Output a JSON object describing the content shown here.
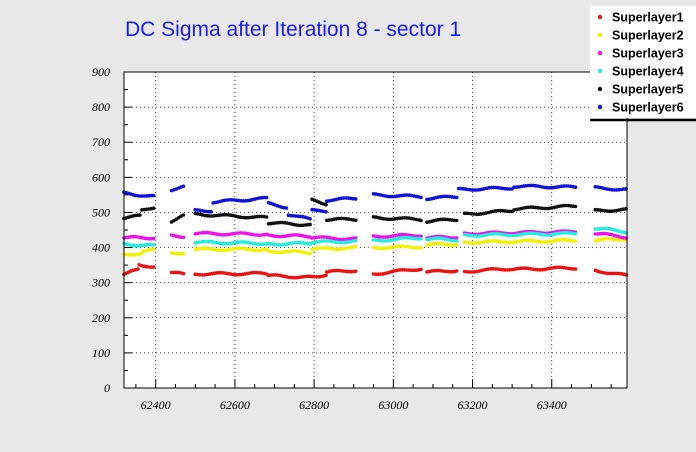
{
  "chart_data": {
    "type": "scatter",
    "title": "DC Sigma after Iteration 8 - sector 1",
    "xlabel": "",
    "ylabel": "",
    "xlim": [
      62320,
      63590
    ],
    "ylim": [
      0,
      900
    ],
    "x_ticks": [
      62400,
      62600,
      62800,
      63000,
      63200,
      63400
    ],
    "y_ticks": [
      0,
      100,
      200,
      300,
      400,
      500,
      600,
      700,
      800,
      900
    ],
    "grid": true,
    "legend_position": "top-right",
    "colors": {
      "background": "#e8e8e8",
      "plot_area": "#ffffff",
      "title": "#1a1aff"
    },
    "series": [
      {
        "name": "Superlayer1",
        "color": "#ee1111",
        "segments": [
          {
            "x": [
              62320,
              62355
            ],
            "y": [
              322,
              338
            ]
          },
          {
            "x": [
              62358,
              62395
            ],
            "y": [
              352,
              345
            ]
          },
          {
            "x": [
              62440,
              62470
            ],
            "y": [
              328,
              324
            ]
          },
          {
            "x": [
              62500,
              62680
            ],
            "y": [
              325,
              326
            ]
          },
          {
            "x": [
              62685,
              62790
            ],
            "y": [
              320,
              315
            ]
          },
          {
            "x": [
              62795,
              62830
            ],
            "y": [
              318,
              322
            ]
          },
          {
            "x": [
              62832,
              62905
            ],
            "y": [
              330,
              335
            ]
          },
          {
            "x": [
              62950,
              63070
            ],
            "y": [
              325,
              340
            ]
          },
          {
            "x": [
              63085,
              63160
            ],
            "y": [
              330,
              335
            ]
          },
          {
            "x": [
              63180,
              63300
            ],
            "y": [
              332,
              340
            ]
          },
          {
            "x": [
              63305,
              63460
            ],
            "y": [
              338,
              342
            ]
          },
          {
            "x": [
              63510,
              63588
            ],
            "y": [
              335,
              320
            ]
          }
        ]
      },
      {
        "name": "Superlayer2",
        "color": "#f2f200",
        "segments": [
          {
            "x": [
              62320,
              62365
            ],
            "y": [
              382,
              382
            ]
          },
          {
            "x": [
              62370,
              62395
            ],
            "y": [
              390,
              392
            ]
          },
          {
            "x": [
              62440,
              62470
            ],
            "y": [
              385,
              385
            ]
          },
          {
            "x": [
              62500,
              62680
            ],
            "y": [
              395,
              395
            ]
          },
          {
            "x": [
              62685,
              62790
            ],
            "y": [
              390,
              386
            ]
          },
          {
            "x": [
              62795,
              62905
            ],
            "y": [
              395,
              400
            ]
          },
          {
            "x": [
              62950,
              63070
            ],
            "y": [
              400,
              402
            ]
          },
          {
            "x": [
              63085,
              63160
            ],
            "y": [
              408,
              410
            ]
          },
          {
            "x": [
              63180,
              63460
            ],
            "y": [
              415,
              420
            ]
          },
          {
            "x": [
              63510,
              63588
            ],
            "y": [
              420,
              425
            ]
          }
        ]
      },
      {
        "name": "Superlayer3",
        "color": "#ee11ee",
        "segments": [
          {
            "x": [
              62320,
              62395
            ],
            "y": [
              428,
              428
            ]
          },
          {
            "x": [
              62440,
              62470
            ],
            "y": [
              435,
              432
            ]
          },
          {
            "x": [
              62500,
              62680
            ],
            "y": [
              440,
              438
            ]
          },
          {
            "x": [
              62685,
              62790
            ],
            "y": [
              435,
              432
            ]
          },
          {
            "x": [
              62795,
              62905
            ],
            "y": [
              428,
              425
            ]
          },
          {
            "x": [
              62950,
              63070
            ],
            "y": [
              432,
              435
            ]
          },
          {
            "x": [
              63085,
              63160
            ],
            "y": [
              428,
              430
            ]
          },
          {
            "x": [
              63180,
              63460
            ],
            "y": [
              440,
              445
            ]
          },
          {
            "x": [
              63510,
              63588
            ],
            "y": [
              440,
              430
            ]
          }
        ]
      },
      {
        "name": "Superlayer4",
        "color": "#22eedd",
        "segments": [
          {
            "x": [
              62320,
              62395
            ],
            "y": [
              410,
              405
            ]
          },
          {
            "x": [
              62500,
              62680
            ],
            "y": [
              415,
              412
            ]
          },
          {
            "x": [
              62685,
              62790
            ],
            "y": [
              410,
              412
            ]
          },
          {
            "x": [
              62795,
              62905
            ],
            "y": [
              415,
              418
            ]
          },
          {
            "x": [
              62950,
              63070
            ],
            "y": [
              420,
              428
            ]
          },
          {
            "x": [
              63085,
              63160
            ],
            "y": [
              425,
              422
            ]
          },
          {
            "x": [
              63180,
              63460
            ],
            "y": [
              435,
              440
            ]
          },
          {
            "x": [
              63510,
              63588
            ],
            "y": [
              455,
              445
            ]
          }
        ]
      },
      {
        "name": "Superlayer5",
        "color": "#111111",
        "segments": [
          {
            "x": [
              62320,
              62360
            ],
            "y": [
              485,
              490
            ]
          },
          {
            "x": [
              62365,
              62395
            ],
            "y": [
              505,
              515
            ]
          },
          {
            "x": [
              62440,
              62470
            ],
            "y": [
              475,
              490
            ]
          },
          {
            "x": [
              62500,
              62680
            ],
            "y": [
              495,
              485
            ]
          },
          {
            "x": [
              62685,
              62790
            ],
            "y": [
              470,
              465
            ]
          },
          {
            "x": [
              62795,
              62830
            ],
            "y": [
              535,
              525
            ]
          },
          {
            "x": [
              62832,
              62905
            ],
            "y": [
              480,
              480
            ]
          },
          {
            "x": [
              62950,
              63070
            ],
            "y": [
              485,
              480
            ]
          },
          {
            "x": [
              63085,
              63160
            ],
            "y": [
              475,
              480
            ]
          },
          {
            "x": [
              63180,
              63300
            ],
            "y": [
              495,
              505
            ]
          },
          {
            "x": [
              63305,
              63460
            ],
            "y": [
              510,
              518
            ]
          },
          {
            "x": [
              63510,
              63588
            ],
            "y": [
              505,
              508
            ]
          }
        ]
      },
      {
        "name": "Superlayer6",
        "color": "#1111dd",
        "segments": [
          {
            "x": [
              62320,
              62395
            ],
            "y": [
              555,
              545
            ]
          },
          {
            "x": [
              62440,
              62470
            ],
            "y": [
              565,
              572
            ]
          },
          {
            "x": [
              62500,
              62540
            ],
            "y": [
              505,
              505
            ]
          },
          {
            "x": [
              62545,
              62680
            ],
            "y": [
              530,
              540
            ]
          },
          {
            "x": [
              62685,
              62730
            ],
            "y": [
              525,
              515
            ]
          },
          {
            "x": [
              62735,
              62790
            ],
            "y": [
              495,
              480
            ]
          },
          {
            "x": [
              62795,
              62830
            ],
            "y": [
              505,
              505
            ]
          },
          {
            "x": [
              62832,
              62905
            ],
            "y": [
              535,
              540
            ]
          },
          {
            "x": [
              62950,
              63070
            ],
            "y": [
              550,
              545
            ]
          },
          {
            "x": [
              63085,
              63160
            ],
            "y": [
              540,
              545
            ]
          },
          {
            "x": [
              63165,
              63300
            ],
            "y": [
              565,
              570
            ]
          },
          {
            "x": [
              63305,
              63460
            ],
            "y": [
              575,
              572
            ]
          },
          {
            "x": [
              63510,
              63588
            ],
            "y": [
              570,
              565
            ]
          }
        ]
      }
    ]
  }
}
